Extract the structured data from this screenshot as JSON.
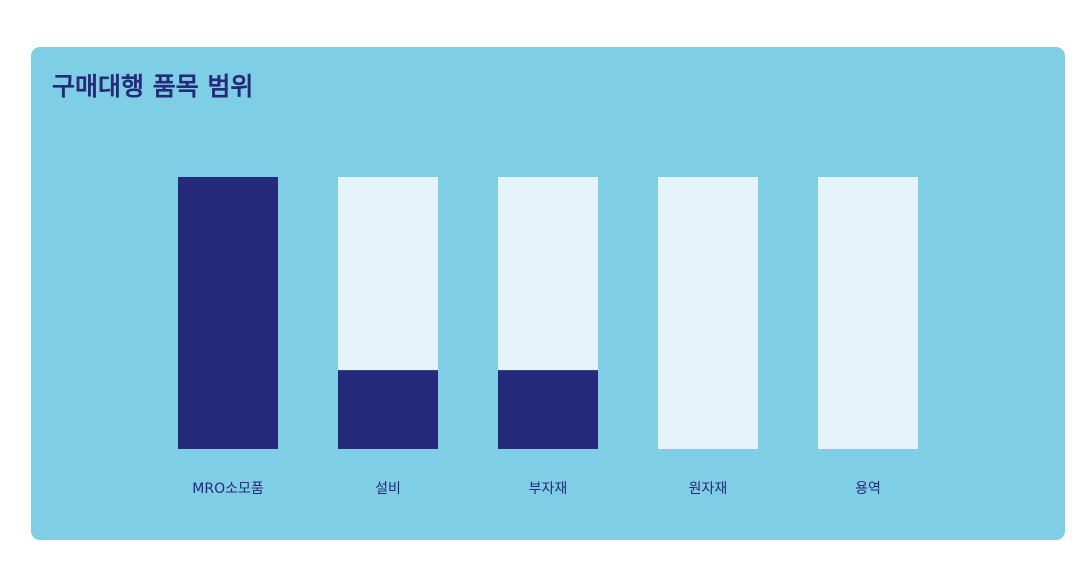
{
  "chart_data": {
    "type": "bar",
    "title": "구매대행 품목 범위",
    "categories": [
      "MRO소모품",
      "설비",
      "부자재",
      "원자재",
      "용역"
    ],
    "values": [
      100,
      29,
      29,
      0,
      0
    ],
    "color": "#252a7b",
    "track_color": "#e4f4f9",
    "background": "#7ecfe6",
    "ylim": [
      0,
      100
    ],
    "grid": false
  }
}
